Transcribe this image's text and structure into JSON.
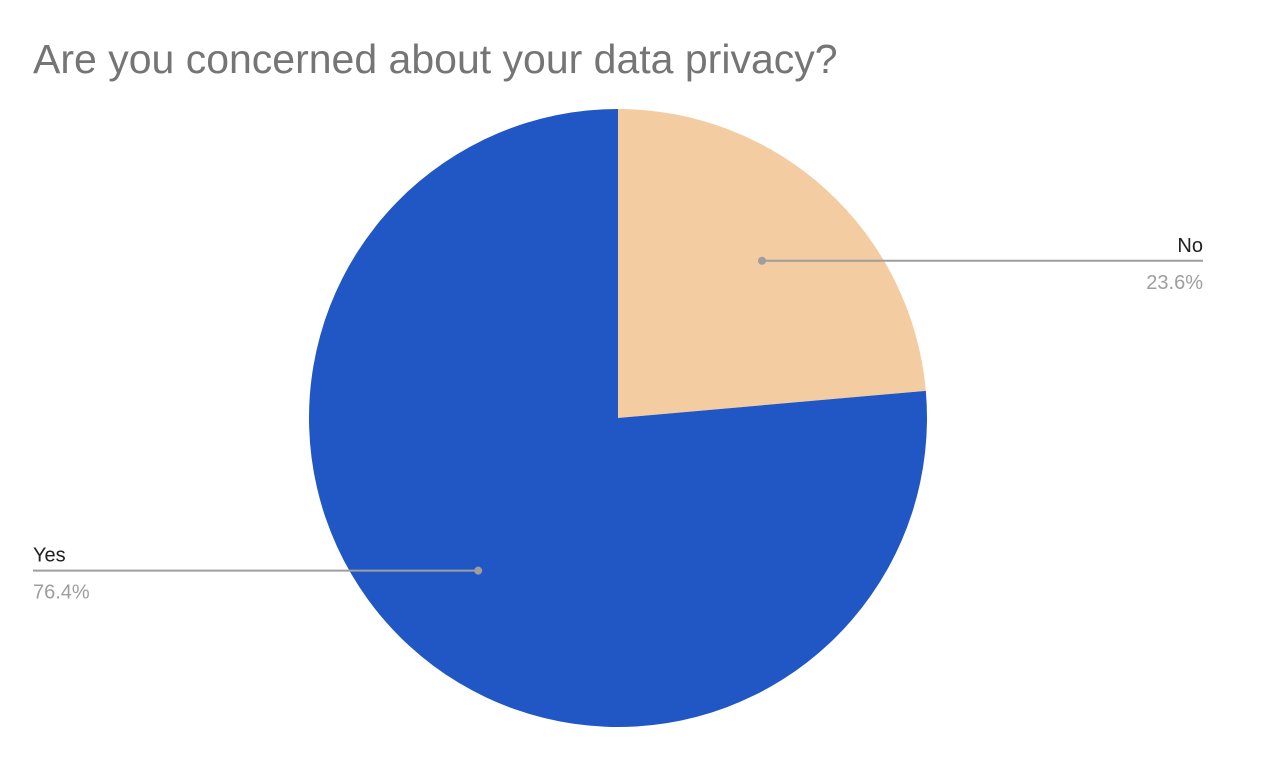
{
  "chart_data": {
    "type": "pie",
    "title": "Are you concerned about your data privacy?",
    "slices": [
      {
        "label": "No",
        "value": 23.6,
        "percent_label": "23.6%",
        "color": "#f3cca1"
      },
      {
        "label": "Yes",
        "value": 76.4,
        "percent_label": "76.4%",
        "color": "#2057c4"
      }
    ],
    "start_angle": "12 o'clock",
    "direction": "clockwise",
    "legend": "none",
    "label_style": "leader lines"
  }
}
